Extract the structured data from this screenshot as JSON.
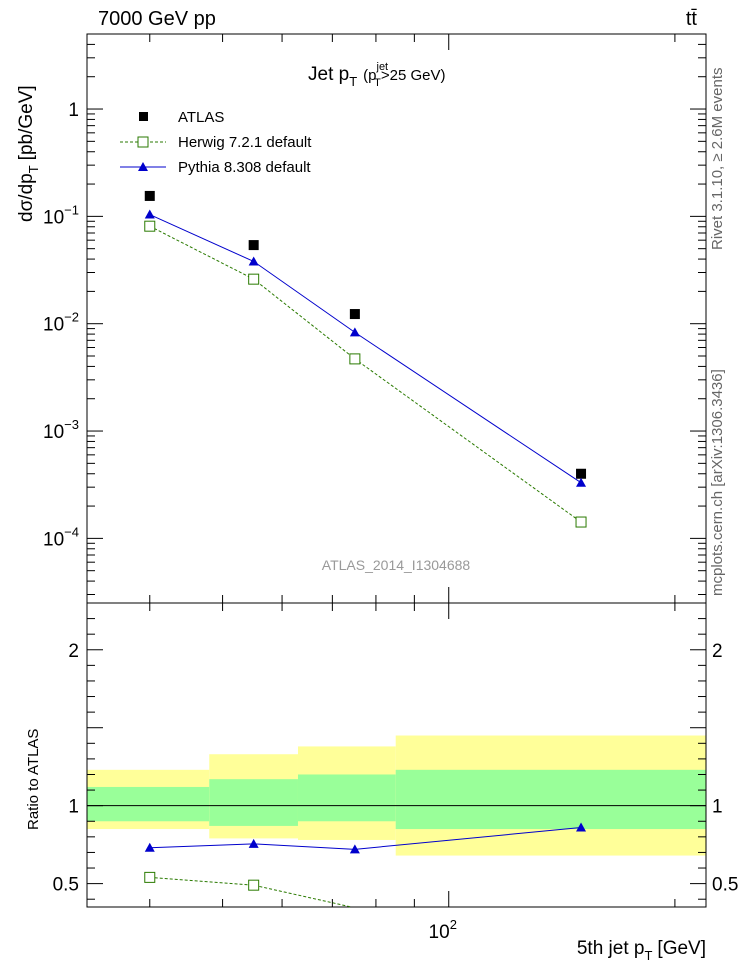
{
  "header": {
    "left": "7000 GeV pp",
    "right": "tt̄"
  },
  "side_labels": {
    "rivet": "Rivet 3.1.10, ≥ 2.6M events",
    "mcplots": "mcplots.cern.ch [arXiv:1306.3436]"
  },
  "chart_data": [
    {
      "type": "scatter",
      "title_main": "Jet p",
      "title_sub": "T",
      "title_cut_open": "(p",
      "title_cut_sup": "jet",
      "title_cut_sub": "T",
      "title_cut_close": ">25 GeV)",
      "ylabel": "dσ/dp",
      "ylabel_sub": "T",
      "ylabel_unit": "[pb/GeV]",
      "yscale": "log",
      "xscale": "log",
      "xlim": [
        33,
        220
      ],
      "ylim": [
        2.5e-05,
        5
      ],
      "ytick_labels": [
        {
          "value": 1,
          "base": "1",
          "exp": ""
        },
        {
          "value": 0.1,
          "base": "10",
          "exp": "−1"
        },
        {
          "value": 0.01,
          "base": "10",
          "exp": "−2"
        },
        {
          "value": 0.001,
          "base": "10",
          "exp": "−3"
        },
        {
          "value": 0.0001,
          "base": "10",
          "exp": "−4"
        }
      ],
      "watermark": "ATLAS_2014_I1304688",
      "legend_position": "top-left",
      "x": [
        40,
        55,
        75,
        150
      ],
      "series": [
        {
          "name": "ATLAS",
          "values": [
            0.155,
            0.054,
            0.0123,
            0.0004
          ],
          "color": "#000000",
          "marker": "filled-square"
        },
        {
          "name": "Herwig 7.2.1 default",
          "values": [
            0.081,
            0.026,
            0.0047,
            0.000142
          ],
          "color": "#2a7a00",
          "marker": "open-square",
          "line": "dashed"
        },
        {
          "name": "Pythia 8.308 default",
          "values": [
            0.104,
            0.038,
            0.0083,
            0.00033
          ],
          "color": "#0000cc",
          "marker": "filled-triangle",
          "line": "solid"
        }
      ]
    },
    {
      "type": "scatter",
      "ylabel": "Ratio to ATLAS",
      "xlabel": "5th jet p",
      "xlabel_sup": "t",
      "xlabel_sub": "T",
      "xlabel_unit": "[GeV]",
      "xscale": "log",
      "xlim": [
        33,
        220
      ],
      "ylim": [
        0.35,
        2.3
      ],
      "ytick_labels": [
        {
          "value": 2,
          "label": "2"
        },
        {
          "value": 1,
          "label": "1"
        },
        {
          "value": 0.5,
          "label": "0.5"
        }
      ],
      "xtick_labels": [
        {
          "value": 100,
          "base": "10",
          "exp": "2"
        }
      ],
      "bins": [
        {
          "lo": 33,
          "hi": 48,
          "yellow": [
            0.85,
            1.23
          ],
          "green": [
            0.9,
            1.12
          ]
        },
        {
          "lo": 48,
          "hi": 63,
          "yellow": [
            0.79,
            1.33
          ],
          "green": [
            0.87,
            1.17
          ]
        },
        {
          "lo": 63,
          "hi": 85,
          "yellow": [
            0.78,
            1.38
          ],
          "green": [
            0.9,
            1.2
          ]
        },
        {
          "lo": 85,
          "hi": 220,
          "yellow": [
            0.68,
            1.45
          ],
          "green": [
            0.85,
            1.23
          ]
        }
      ],
      "x": [
        40,
        55,
        75,
        150
      ],
      "series": [
        {
          "name": "Herwig 7.2.1 default",
          "values": [
            0.54,
            0.49,
            0.345,
            null
          ],
          "color": "#2a7a00",
          "marker": "open-square",
          "line": "dashed"
        },
        {
          "name": "Pythia 8.308 default",
          "values": [
            0.73,
            0.755,
            0.72,
            0.86
          ],
          "color": "#0000cc",
          "marker": "filled-triangle",
          "line": "solid"
        }
      ]
    }
  ]
}
